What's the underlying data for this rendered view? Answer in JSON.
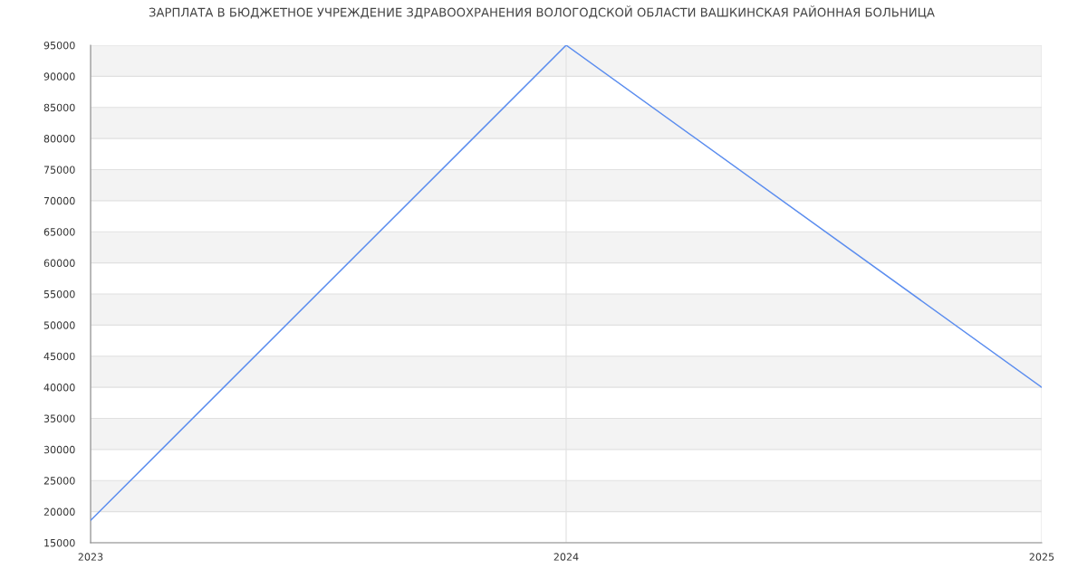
{
  "chart_data": {
    "type": "line",
    "title": "ЗАРПЛАТА В БЮДЖЕТНОЕ УЧРЕЖДЕНИЕ ЗДРАВООХРАНЕНИЯ ВОЛОГОДСКОЙ ОБЛАСТИ ВАШКИНСКАЯ РАЙОННАЯ БОЛЬНИЦА",
    "x": [
      2023,
      2024,
      2025
    ],
    "series": [
      {
        "color": "#5b8def",
        "values": [
          18600,
          95000,
          40000
        ]
      }
    ],
    "xlim": [
      2023,
      2025
    ],
    "xticks": [
      2023,
      2024,
      2025
    ],
    "ylim": [
      15000,
      95000
    ],
    "yticks": [
      15000,
      20000,
      25000,
      30000,
      35000,
      40000,
      45000,
      50000,
      55000,
      60000,
      65000,
      70000,
      75000,
      80000,
      85000,
      90000,
      95000
    ],
    "grid": true,
    "marker": "none",
    "line_style": "solid"
  }
}
